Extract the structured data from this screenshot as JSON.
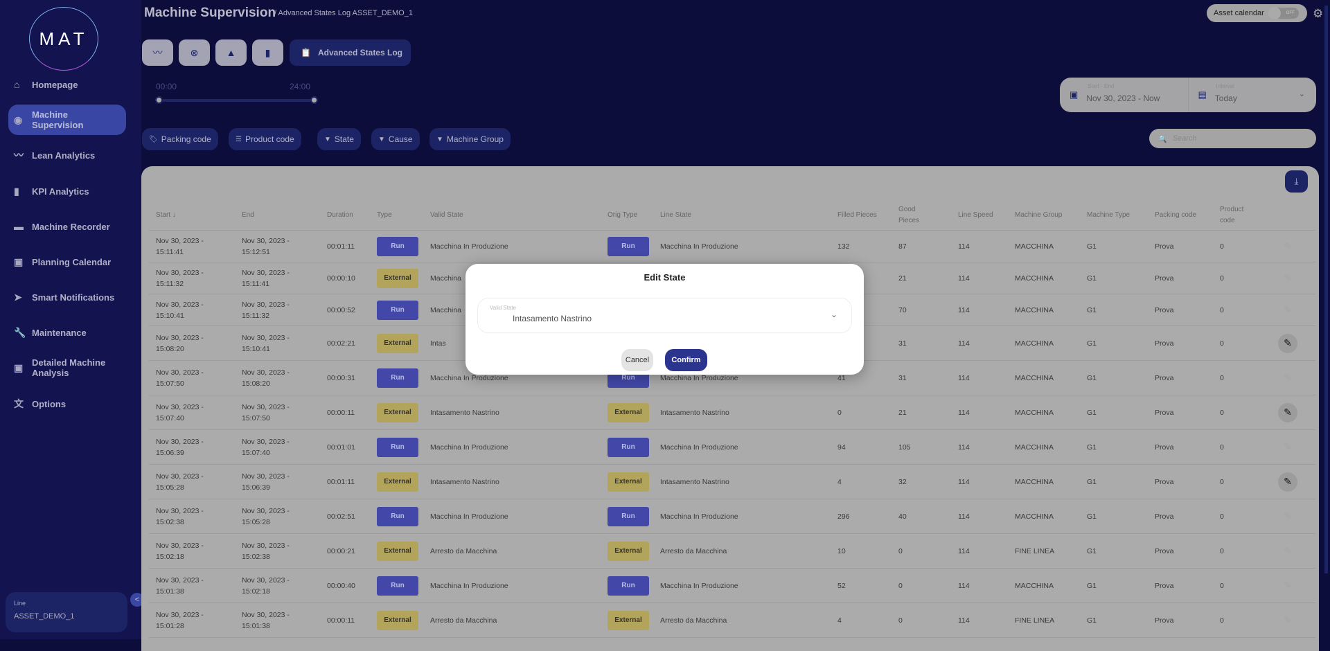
{
  "sidebar": {
    "logo": "MAT",
    "items": [
      {
        "label": "Homepage",
        "icon": "home-icon"
      },
      {
        "label": "Machine Supervision",
        "icon": "eye-icon",
        "active": true
      },
      {
        "label": "Lean Analytics",
        "icon": "trend-icon"
      },
      {
        "label": "KPI Analytics",
        "icon": "bar-chart-icon"
      },
      {
        "label": "Machine Recorder",
        "icon": "recorder-icon"
      },
      {
        "label": "Planning Calendar",
        "icon": "calendar-icon"
      },
      {
        "label": "Smart Notifications",
        "icon": "send-icon"
      },
      {
        "label": "Maintenance",
        "icon": "wrench-icon"
      },
      {
        "label": "Detailed Machine Analysis",
        "icon": "calendar-icon"
      },
      {
        "label": "Options",
        "icon": "translate-icon"
      }
    ],
    "line_label": "Line",
    "line_value": "ASSET_DEMO_1"
  },
  "header": {
    "title": "Machine Supervision",
    "breadcrumb": "/ Advanced States Log  ASSET_DEMO_1",
    "asset_calendar_label": "Asset calendar",
    "asset_calendar_toggle": "OFF"
  },
  "toolbar": {
    "advanced_states_log": "Advanced States Log"
  },
  "time_slider": {
    "start": "00:00",
    "end": "24:00"
  },
  "date_picker": {
    "range_label": "Start - End",
    "range_value": "Nov 30, 2023 - Now",
    "interval_label": "Interval",
    "interval_value": "Today"
  },
  "filters": [
    "Packing code",
    "Product code",
    "State",
    "Cause",
    "Machine Group"
  ],
  "search": {
    "placeholder": "Search"
  },
  "table": {
    "columns": [
      "Start ↓",
      "End",
      "Duration",
      "Type",
      "Valid State",
      "Orig Type",
      "Line State",
      "Filled Pieces",
      "Good Pieces",
      "Line Speed",
      "Machine Group",
      "Machine Type",
      "Packing code",
      "Product code"
    ],
    "rows": [
      [
        "Nov 30, 2023 - 15:11:41",
        "Nov 30, 2023 - 15:12:51",
        "00:01:11",
        "Run",
        "Macchina In Produzione",
        "Run",
        "Macchina In Produzione",
        "132",
        "87",
        "114",
        "MACCHINA",
        "G1",
        "Prova",
        "0",
        false
      ],
      [
        "Nov 30, 2023 - 15:11:32",
        "Nov 30, 2023 - 15:11:41",
        "00:00:10",
        "External",
        "Macchina",
        "",
        "",
        "",
        "21",
        "114",
        "MACCHINA",
        "G1",
        "Prova",
        "0",
        false
      ],
      [
        "Nov 30, 2023 - 15:10:41",
        "Nov 30, 2023 - 15:11:32",
        "00:00:52",
        "Run",
        "Macchina",
        "",
        "",
        "",
        "70",
        "114",
        "MACCHINA",
        "G1",
        "Prova",
        "0",
        false
      ],
      [
        "Nov 30, 2023 - 15:08:20",
        "Nov 30, 2023 - 15:10:41",
        "00:02:21",
        "External",
        "Intas",
        "",
        "",
        "",
        "31",
        "114",
        "MACCHINA",
        "G1",
        "Prova",
        "0",
        true
      ],
      [
        "Nov 30, 2023 - 15:07:50",
        "Nov 30, 2023 - 15:08:20",
        "00:00:31",
        "Run",
        "Macchina In Produzione",
        "Run",
        "Macchina In Produzione",
        "41",
        "31",
        "114",
        "MACCHINA",
        "G1",
        "Prova",
        "0",
        false
      ],
      [
        "Nov 30, 2023 - 15:07:40",
        "Nov 30, 2023 - 15:07:50",
        "00:00:11",
        "External",
        "Intasamento Nastrino",
        "External",
        "Intasamento Nastrino",
        "0",
        "21",
        "114",
        "MACCHINA",
        "G1",
        "Prova",
        "0",
        true
      ],
      [
        "Nov 30, 2023 - 15:06:39",
        "Nov 30, 2023 - 15:07:40",
        "00:01:01",
        "Run",
        "Macchina In Produzione",
        "Run",
        "Macchina In Produzione",
        "94",
        "105",
        "114",
        "MACCHINA",
        "G1",
        "Prova",
        "0",
        false
      ],
      [
        "Nov 30, 2023 - 15:05:28",
        "Nov 30, 2023 - 15:06:39",
        "00:01:11",
        "External",
        "Intasamento Nastrino",
        "External",
        "Intasamento Nastrino",
        "4",
        "32",
        "114",
        "MACCHINA",
        "G1",
        "Prova",
        "0",
        true
      ],
      [
        "Nov 30, 2023 - 15:02:38",
        "Nov 30, 2023 - 15:05:28",
        "00:02:51",
        "Run",
        "Macchina In Produzione",
        "Run",
        "Macchina In Produzione",
        "296",
        "40",
        "114",
        "MACCHINA",
        "G1",
        "Prova",
        "0",
        false
      ],
      [
        "Nov 30, 2023 - 15:02:18",
        "Nov 30, 2023 - 15:02:38",
        "00:00:21",
        "External",
        "Arresto da Macchina",
        "External",
        "Arresto da Macchina",
        "10",
        "0",
        "114",
        "FINE LINEA",
        "G1",
        "Prova",
        "0",
        false
      ],
      [
        "Nov 30, 2023 - 15:01:38",
        "Nov 30, 2023 - 15:02:18",
        "00:00:40",
        "Run",
        "Macchina In Produzione",
        "Run",
        "Macchina In Produzione",
        "52",
        "0",
        "114",
        "MACCHINA",
        "G1",
        "Prova",
        "0",
        false
      ],
      [
        "Nov 30, 2023 - 15:01:28",
        "Nov 30, 2023 - 15:01:38",
        "00:00:11",
        "External",
        "Arresto da Macchina",
        "External",
        "Arresto da Macchina",
        "4",
        "0",
        "114",
        "FINE LINEA",
        "G1",
        "Prova",
        "0",
        false
      ]
    ]
  },
  "modal": {
    "title": "Edit State",
    "field_label": "Valid State",
    "field_value": "Intasamento Nastrino",
    "cancel": "Cancel",
    "confirm": "Confirm"
  },
  "colors": {
    "run": "#4348a8",
    "external": "#b3a45c",
    "accent": "#2b3590",
    "sidebar": "#13134f"
  }
}
